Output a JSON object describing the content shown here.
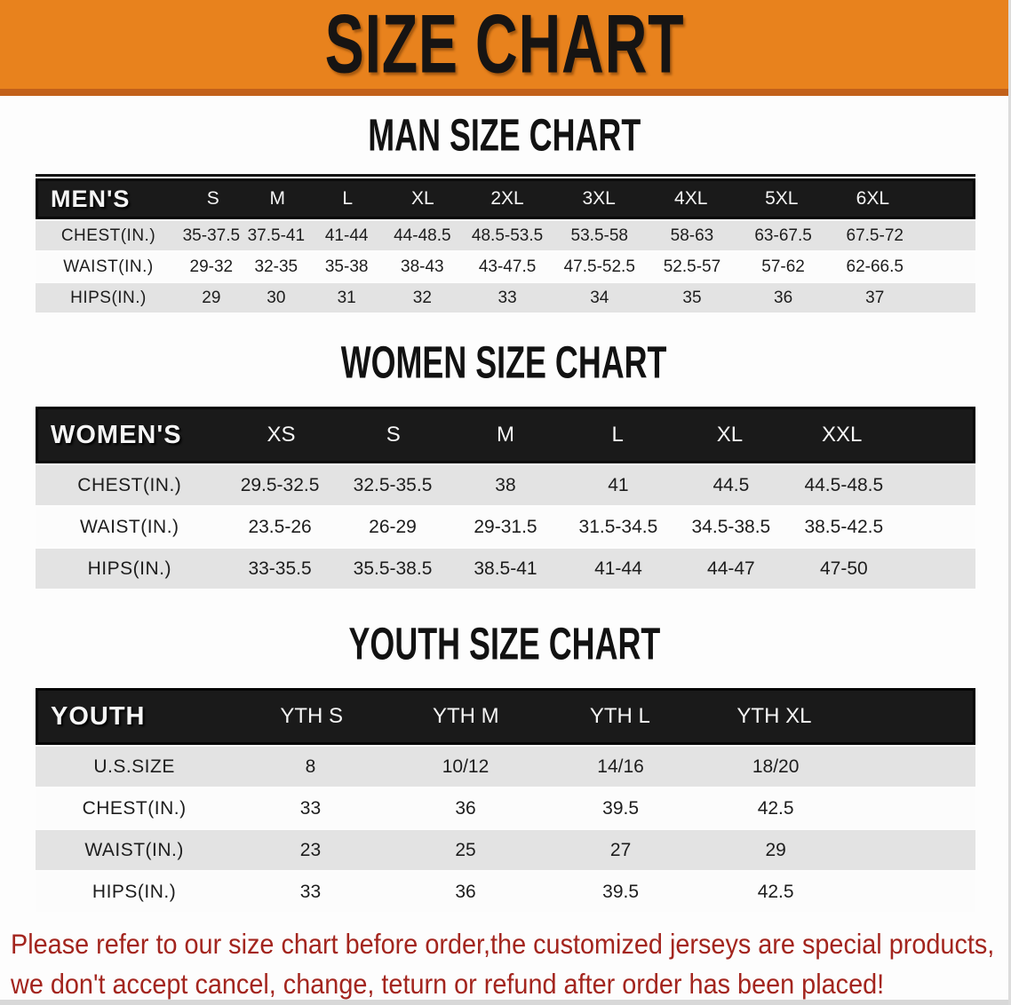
{
  "banner": {
    "title": "SIZE CHART",
    "bg_color": "#E8821D",
    "edge_color": "#C2611A"
  },
  "sections": [
    {
      "id": "men",
      "heading": "MAN SIZE CHART",
      "group_label": "MEN'S",
      "columns": [
        "S",
        "M",
        "L",
        "XL",
        "2XL",
        "3XL",
        "4XL",
        "5XL",
        "6XL"
      ],
      "rows": [
        {
          "label": "CHEST(IN.)",
          "values": [
            "35-37.5",
            "37.5-41",
            "41-44",
            "44-48.5",
            "48.5-53.5",
            "53.5-58",
            "58-63",
            "63-67.5",
            "67.5-72"
          ]
        },
        {
          "label": "WAIST(IN.)",
          "values": [
            "29-32",
            "32-35",
            "35-38",
            "38-43",
            "43-47.5",
            "47.5-52.5",
            "52.5-57",
            "57-62",
            "62-66.5"
          ]
        },
        {
          "label": "HIPS(IN.)",
          "values": [
            "29",
            "30",
            "31",
            "32",
            "33",
            "34",
            "35",
            "36",
            "37"
          ]
        }
      ]
    },
    {
      "id": "women",
      "heading": "WOMEN SIZE CHART",
      "group_label": "WOMEN'S",
      "columns": [
        "XS",
        "S",
        "M",
        "L",
        "XL",
        "XXL"
      ],
      "rows": [
        {
          "label": "CHEST(IN.)",
          "values": [
            "29.5-32.5",
            "32.5-35.5",
            "38",
            "41",
            "44.5",
            "44.5-48.5"
          ]
        },
        {
          "label": "WAIST(IN.)",
          "values": [
            "23.5-26",
            "26-29",
            "29-31.5",
            "31.5-34.5",
            "34.5-38.5",
            "38.5-42.5"
          ]
        },
        {
          "label": "HIPS(IN.)",
          "values": [
            "33-35.5",
            "35.5-38.5",
            "38.5-41",
            "41-44",
            "44-47",
            "47-50"
          ]
        }
      ]
    },
    {
      "id": "youth",
      "heading": "YOUTH SIZE CHART",
      "group_label": "YOUTH",
      "columns": [
        "YTH S",
        "YTH M",
        "YTH L",
        "YTH XL"
      ],
      "rows": [
        {
          "label": "U.S.SIZE",
          "values": [
            "8",
            "10/12",
            "14/16",
            "18/20"
          ]
        },
        {
          "label": "CHEST(IN.)",
          "values": [
            "33",
            "36",
            "39.5",
            "42.5"
          ]
        },
        {
          "label": "WAIST(IN.)",
          "values": [
            "23",
            "25",
            "27",
            "29"
          ]
        },
        {
          "label": "HIPS(IN.)",
          "values": [
            "33",
            "36",
            "39.5",
            "42.5"
          ]
        }
      ]
    }
  ],
  "footnote": {
    "line1": "Please refer to our size chart before order,the customized jerseys are special products,",
    "line2": "we don't accept cancel, change, teturn or refund after order has been placed!",
    "color": "#A3251E"
  },
  "table_colors": {
    "header_band": "#1a1a1a",
    "row_gray": "#E3E3E3",
    "row_white": "#FCFCFC"
  }
}
